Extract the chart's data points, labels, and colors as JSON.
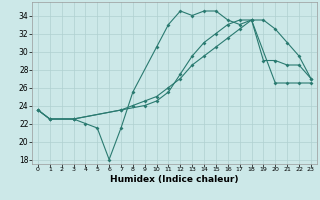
{
  "xlabel": "Humidex (Indice chaleur)",
  "background_color": "#cce8e8",
  "grid_color": "#b0d0d0",
  "line_color": "#2a7a70",
  "xlim": [
    -0.5,
    23.5
  ],
  "ylim": [
    17.5,
    35.5
  ],
  "yticks": [
    18,
    20,
    22,
    24,
    26,
    28,
    30,
    32,
    34
  ],
  "xticks": [
    0,
    1,
    2,
    3,
    4,
    5,
    6,
    7,
    8,
    9,
    10,
    11,
    12,
    13,
    14,
    15,
    16,
    17,
    18,
    19,
    20,
    21,
    22,
    23
  ],
  "line1_x": [
    0,
    1,
    3,
    4,
    5,
    6,
    7,
    8,
    10,
    11,
    12,
    13,
    14,
    15,
    16,
    17,
    18,
    19,
    20,
    21,
    22,
    23
  ],
  "line1_y": [
    23.5,
    22.5,
    22.5,
    22.0,
    21.5,
    18.0,
    21.5,
    25.5,
    30.5,
    33.0,
    34.5,
    34.0,
    34.5,
    34.5,
    33.5,
    33.0,
    33.5,
    29.0,
    29.0,
    28.5,
    28.5,
    27.0
  ],
  "line2_x": [
    0,
    1,
    3,
    7,
    9,
    10,
    11,
    12,
    13,
    14,
    15,
    16,
    17,
    18,
    19,
    20,
    21,
    22,
    23
  ],
  "line2_y": [
    23.5,
    22.5,
    22.5,
    23.5,
    24.0,
    24.5,
    25.5,
    27.5,
    29.5,
    31.0,
    32.0,
    33.0,
    33.5,
    33.5,
    33.5,
    32.5,
    31.0,
    29.5,
    27.0
  ],
  "line3_x": [
    0,
    1,
    3,
    7,
    8,
    9,
    10,
    11,
    12,
    13,
    14,
    15,
    16,
    17,
    18,
    20,
    21,
    22,
    23
  ],
  "line3_y": [
    23.5,
    22.5,
    22.5,
    23.5,
    24.0,
    24.5,
    25.0,
    26.0,
    27.0,
    28.5,
    29.5,
    30.5,
    31.5,
    32.5,
    33.5,
    26.5,
    26.5,
    26.5,
    26.5
  ]
}
